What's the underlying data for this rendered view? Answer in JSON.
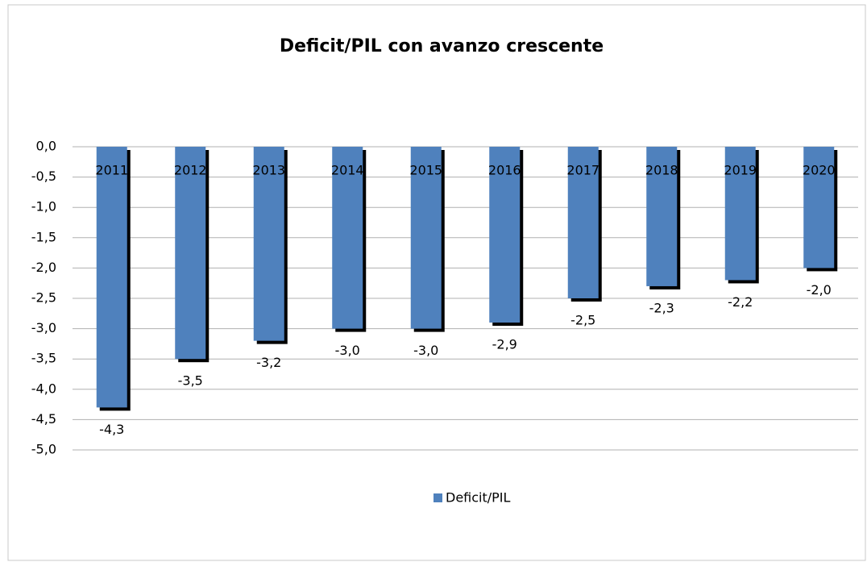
{
  "chart_data": {
    "type": "bar",
    "title": "Deficit/PIL con avanzo crescente",
    "categories": [
      "2011",
      "2012",
      "2013",
      "2014",
      "2015",
      "2016",
      "2017",
      "2018",
      "2019",
      "2020"
    ],
    "series": [
      {
        "name": "Deficit/PIL",
        "color": "#4f81bd",
        "values": [
          -4.3,
          -3.5,
          -3.2,
          -3.0,
          -3.0,
          -2.9,
          -2.5,
          -2.3,
          -2.2,
          -2.0
        ],
        "value_labels": [
          "-4,3",
          "-3,5",
          "-3,2",
          "-3,0",
          "-3,0",
          "-2,9",
          "-2,5",
          "-2,3",
          "-2,2",
          "-2,0"
        ]
      }
    ],
    "ylim": [
      -5,
      0
    ],
    "yticks": [
      {
        "value": 0,
        "label": "0,0"
      },
      {
        "value": -0.5,
        "label": "-0,5"
      },
      {
        "value": -1,
        "label": "-1,0"
      },
      {
        "value": -1.5,
        "label": "-1,5"
      },
      {
        "value": -2,
        "label": "-2,0"
      },
      {
        "value": -2.5,
        "label": "-2,5"
      },
      {
        "value": -3,
        "label": "-3,0"
      },
      {
        "value": -3.5,
        "label": "-3,5"
      },
      {
        "value": -4,
        "label": "-4,0"
      },
      {
        "value": -4.5,
        "label": "-4,5"
      },
      {
        "value": -5,
        "label": "-5,0"
      }
    ],
    "grid": true,
    "legend": "bottom"
  }
}
